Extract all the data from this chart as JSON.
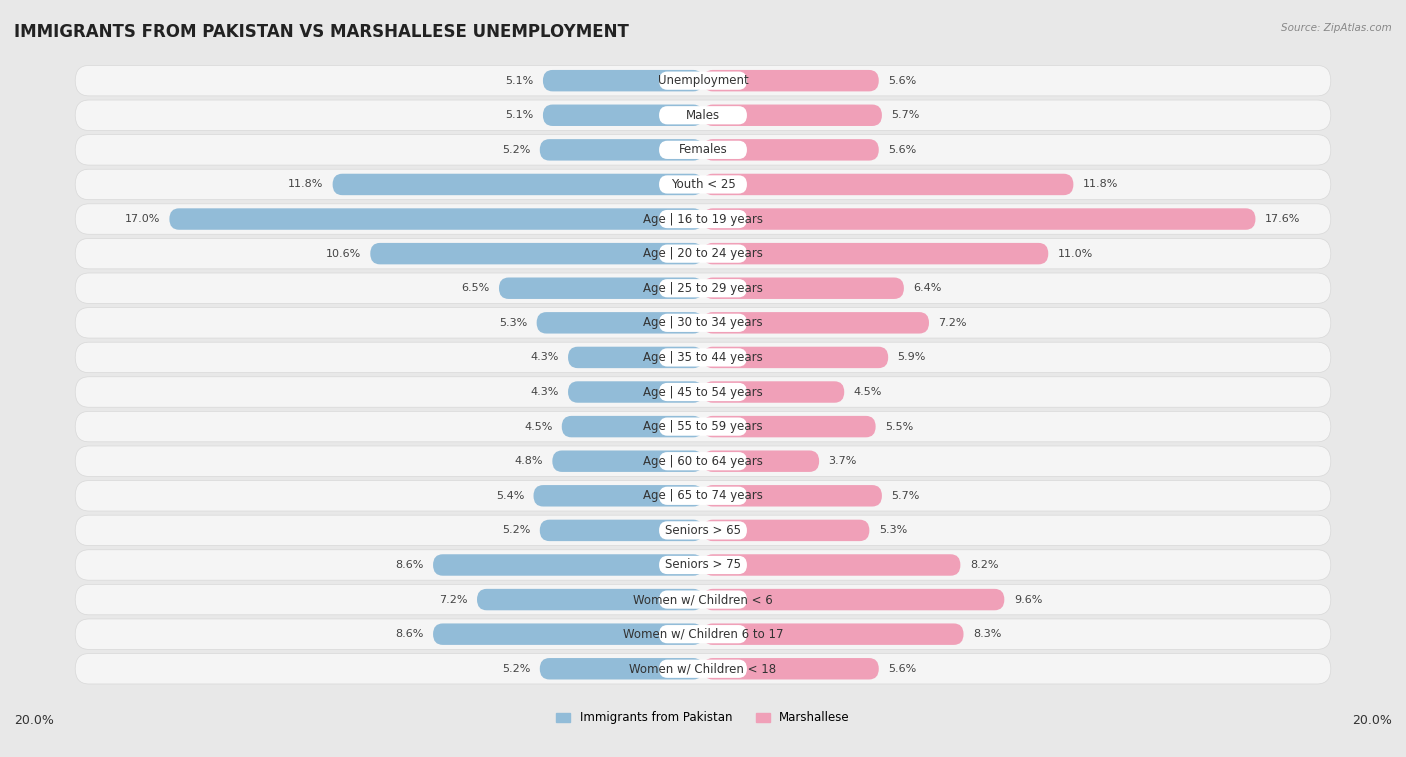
{
  "title": "IMMIGRANTS FROM PAKISTAN VS MARSHALLESE UNEMPLOYMENT",
  "source": "Source: ZipAtlas.com",
  "categories": [
    "Unemployment",
    "Males",
    "Females",
    "Youth < 25",
    "Age | 16 to 19 years",
    "Age | 20 to 24 years",
    "Age | 25 to 29 years",
    "Age | 30 to 34 years",
    "Age | 35 to 44 years",
    "Age | 45 to 54 years",
    "Age | 55 to 59 years",
    "Age | 60 to 64 years",
    "Age | 65 to 74 years",
    "Seniors > 65",
    "Seniors > 75",
    "Women w/ Children < 6",
    "Women w/ Children 6 to 17",
    "Women w/ Children < 18"
  ],
  "pakistan_values": [
    5.1,
    5.1,
    5.2,
    11.8,
    17.0,
    10.6,
    6.5,
    5.3,
    4.3,
    4.3,
    4.5,
    4.8,
    5.4,
    5.2,
    8.6,
    7.2,
    8.6,
    5.2
  ],
  "marshallese_values": [
    5.6,
    5.7,
    5.6,
    11.8,
    17.6,
    11.0,
    6.4,
    7.2,
    5.9,
    4.5,
    5.5,
    3.7,
    5.7,
    5.3,
    8.2,
    9.6,
    8.3,
    5.6
  ],
  "pakistan_color": "#92bcd8",
  "marshallese_color": "#f0a0b8",
  "background_color": "#e8e8e8",
  "row_bg_color": "#f5f5f5",
  "row_border_color": "#d8d8d8",
  "xlim": 20.0,
  "bar_height": 0.62,
  "legend_labels": [
    "Immigrants from Pakistan",
    "Marshallese"
  ],
  "title_fontsize": 12,
  "label_fontsize": 8.5,
  "value_fontsize": 8.0,
  "axis_label_fontsize": 9.0
}
